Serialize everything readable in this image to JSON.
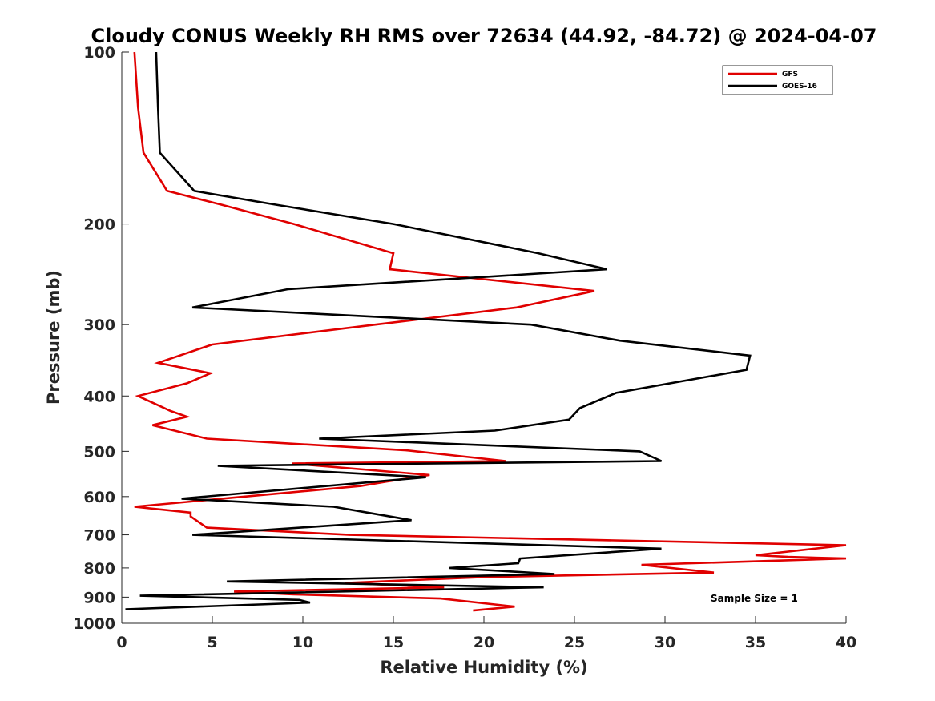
{
  "chart_data": {
    "type": "line",
    "title": "Cloudy CONUS Weekly RH RMS over 72634 (44.92, -84.72) @ 2024-04-07",
    "xlabel": "Relative Humidity (%)",
    "ylabel": "Pressure (mb)",
    "xlim": [
      0,
      40
    ],
    "ylim": [
      100,
      1000
    ],
    "y_scale": "log",
    "y_reversed": true,
    "x_ticks": [
      0,
      5,
      10,
      15,
      20,
      25,
      30,
      35,
      40
    ],
    "x_tick_labels": [
      "0",
      "5",
      "10",
      "15",
      "20",
      "25",
      "30",
      "35",
      "40"
    ],
    "y_ticks": [
      100,
      200,
      300,
      400,
      500,
      600,
      700,
      800,
      900,
      1000
    ],
    "y_tick_labels": [
      "100",
      "200",
      "300",
      "400",
      "500",
      "600",
      "700",
      "800",
      "900",
      "1000"
    ],
    "grid": false,
    "legend_position": "top-right",
    "annotation": "Sample Size = 1",
    "series": [
      {
        "name": "GFS",
        "color": "#e00000",
        "points": [
          [
            0.7,
            100
          ],
          [
            0.9,
            125
          ],
          [
            1.2,
            150
          ],
          [
            2.5,
            175
          ],
          [
            5.5,
            185
          ],
          [
            9.5,
            200
          ],
          [
            15,
            225
          ],
          [
            14.8,
            240
          ],
          [
            26.1,
            262
          ],
          [
            21.8,
            280
          ],
          [
            14,
            300
          ],
          [
            5,
            325
          ],
          [
            2,
            350
          ],
          [
            4.9,
            365
          ],
          [
            3.6,
            380
          ],
          [
            0.9,
            400
          ],
          [
            2.7,
            425
          ],
          [
            3.6,
            435
          ],
          [
            1.7,
            450
          ],
          [
            4.7,
            475
          ],
          [
            15.7,
            498
          ],
          [
            21.2,
            520
          ],
          [
            9.4,
            525
          ],
          [
            17,
            550
          ],
          [
            14.6,
            565
          ],
          [
            13.2,
            575
          ],
          [
            0.7,
            625
          ],
          [
            3.8,
            640
          ],
          [
            3.8,
            650
          ],
          [
            4.7,
            680
          ],
          [
            12.6,
            700
          ],
          [
            40,
            730
          ],
          [
            35,
            760
          ],
          [
            36.8,
            765
          ],
          [
            40,
            770
          ],
          [
            28.7,
            790
          ],
          [
            32.7,
            815
          ],
          [
            20,
            830
          ],
          [
            12.3,
            850
          ],
          [
            17.8,
            865
          ],
          [
            6.2,
            880
          ],
          [
            9.5,
            890
          ],
          [
            17.6,
            905
          ],
          [
            21.7,
            935
          ],
          [
            19.4,
            950
          ]
        ]
      },
      {
        "name": "GOES-16",
        "color": "#000000",
        "points": [
          [
            1.9,
            100
          ],
          [
            2,
            125
          ],
          [
            2.1,
            150
          ],
          [
            4,
            175
          ],
          [
            8.5,
            185
          ],
          [
            15,
            200
          ],
          [
            23,
            225
          ],
          [
            26.8,
            240
          ],
          [
            9.2,
            260
          ],
          [
            3.9,
            280
          ],
          [
            22.6,
            300
          ],
          [
            27.5,
            320
          ],
          [
            34.7,
            340
          ],
          [
            34.5,
            360
          ],
          [
            27.3,
            395
          ],
          [
            25.3,
            420
          ],
          [
            24.7,
            440
          ],
          [
            20.6,
            460
          ],
          [
            10.9,
            475
          ],
          [
            28.6,
            500
          ],
          [
            29.8,
            520
          ],
          [
            5.3,
            530
          ],
          [
            16.8,
            555
          ],
          [
            3.3,
            605
          ],
          [
            11.7,
            625
          ],
          [
            16,
            660
          ],
          [
            3.9,
            700
          ],
          [
            29.8,
            740
          ],
          [
            22,
            770
          ],
          [
            21.9,
            785
          ],
          [
            18.1,
            800
          ],
          [
            23.9,
            820
          ],
          [
            5.8,
            845
          ],
          [
            23.3,
            865
          ],
          [
            1,
            895
          ],
          [
            9.8,
            910
          ],
          [
            10.4,
            920
          ],
          [
            0.2,
            945
          ]
        ]
      }
    ]
  }
}
